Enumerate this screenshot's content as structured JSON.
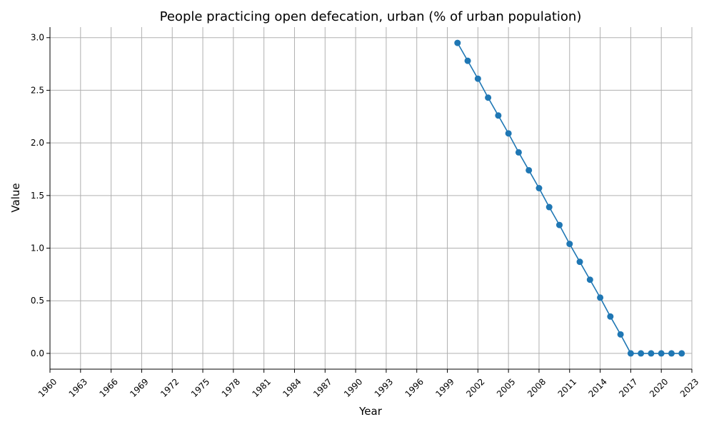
{
  "chart_data": {
    "type": "line",
    "title": "People practicing open defecation, urban (% of urban population)",
    "xlabel": "Year",
    "ylabel": "Value",
    "xlim": [
      1960,
      2023
    ],
    "ylim": [
      -0.15,
      3.1
    ],
    "x_ticks": [
      1960,
      1963,
      1966,
      1969,
      1972,
      1975,
      1978,
      1981,
      1984,
      1987,
      1990,
      1993,
      1996,
      1999,
      2002,
      2005,
      2008,
      2011,
      2014,
      2017,
      2020,
      2023
    ],
    "y_ticks": [
      0.0,
      0.5,
      1.0,
      1.5,
      2.0,
      2.5,
      3.0
    ],
    "y_tick_labels": [
      "0.0",
      "0.5",
      "1.0",
      "1.5",
      "2.0",
      "2.5",
      "3.0"
    ],
    "grid": true,
    "color": "#1f77b4",
    "series": [
      {
        "x": [
          2000,
          2001,
          2002,
          2003,
          2004,
          2005,
          2006,
          2007,
          2008,
          2009,
          2010,
          2011,
          2012,
          2013,
          2014,
          2015,
          2016,
          2017,
          2018,
          2019,
          2020,
          2021,
          2022
        ],
        "y": [
          2.95,
          2.78,
          2.61,
          2.43,
          2.26,
          2.09,
          1.91,
          1.74,
          1.57,
          1.39,
          1.22,
          1.04,
          0.87,
          0.7,
          0.53,
          0.35,
          0.18,
          0.0,
          0.0,
          0.0,
          0.0,
          0.0,
          0.0
        ]
      }
    ]
  }
}
